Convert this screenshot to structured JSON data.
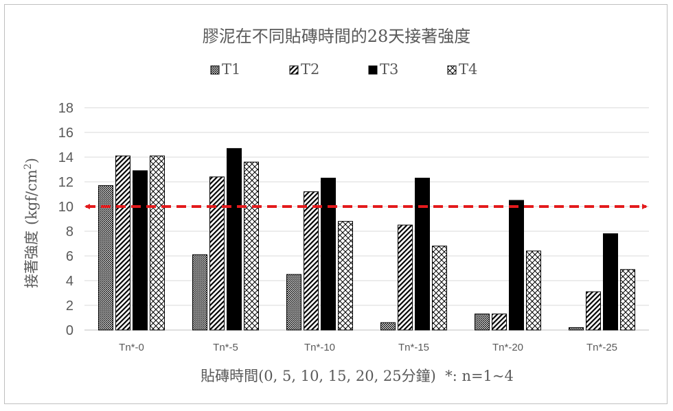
{
  "chart_data": {
    "type": "bar",
    "title": "膠泥在不同貼磚時間的28天接著強度",
    "xlabel": "貼磚時間(0, 5, 10, 15, 20, 25分鐘)  *: n=1~4",
    "ylabel_main": "接著強度",
    "ylabel_unit": "(kgf/cm",
    "ylabel_sup": "2",
    "ylabel_close": ")",
    "ylim": [
      0,
      18
    ],
    "yticks": [
      0,
      2,
      4,
      6,
      8,
      10,
      12,
      14,
      16,
      18
    ],
    "grid": true,
    "legend_position": "top",
    "categories": [
      "Tn*-0",
      "Tn*-5",
      "Tn*-10",
      "Tn*-15",
      "Tn*-20",
      "Tn*-25"
    ],
    "series": [
      {
        "name": "T1",
        "pattern": "dense-crosshatch",
        "values": [
          11.7,
          6.1,
          4.5,
          0.6,
          1.3,
          0.2
        ]
      },
      {
        "name": "T2",
        "pattern": "diagonal-stripes",
        "values": [
          14.1,
          12.4,
          11.2,
          8.5,
          1.3,
          3.1
        ]
      },
      {
        "name": "T3",
        "pattern": "solid-black",
        "values": [
          12.9,
          14.7,
          12.3,
          12.3,
          10.5,
          7.8
        ]
      },
      {
        "name": "T4",
        "pattern": "open-crosshatch",
        "values": [
          14.1,
          13.6,
          8.8,
          6.8,
          6.4,
          4.9
        ]
      }
    ],
    "reference_line": {
      "value": 10,
      "style": "dashed",
      "arrows": "both",
      "color": "#e31a1c"
    }
  }
}
